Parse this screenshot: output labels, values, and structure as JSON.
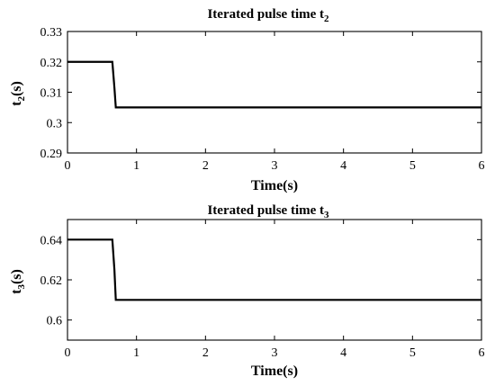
{
  "chart_data": [
    {
      "type": "line",
      "title": "Iterated pulse time t",
      "title_sub": "2",
      "xlabel": "Time(s)",
      "ylabel": "t",
      "ylabel_sub": "2",
      "ylabel_unit": "(s)",
      "xlim": [
        0,
        6
      ],
      "ylim": [
        0.29,
        0.33
      ],
      "xticks": [
        0,
        1,
        2,
        3,
        4,
        5,
        6
      ],
      "xtick_labels": [
        "0",
        "1",
        "2",
        "3",
        "4",
        "5",
        "6"
      ],
      "yticks": [
        0.29,
        0.3,
        0.31,
        0.32,
        0.33
      ],
      "ytick_labels": [
        "0.29",
        "0.3",
        "0.31",
        "0.32",
        "0.33"
      ],
      "grid": false,
      "series": [
        {
          "color": "#000000",
          "x": [
            0,
            0.65,
            0.68,
            0.7,
            6
          ],
          "y": [
            0.32,
            0.32,
            0.3115,
            0.305,
            0.305
          ]
        }
      ]
    },
    {
      "type": "line",
      "title": "Iterated pulse time t",
      "title_sub": "3",
      "xlabel": "Time(s)",
      "ylabel": "t",
      "ylabel_sub": "3",
      "ylabel_unit": "(s)",
      "xlim": [
        0,
        6
      ],
      "ylim": [
        0.59,
        0.65
      ],
      "xticks": [
        0,
        1,
        2,
        3,
        4,
        5,
        6
      ],
      "xtick_labels": [
        "0",
        "1",
        "2",
        "3",
        "4",
        "5",
        "6"
      ],
      "yticks": [
        0.6,
        0.62,
        0.64
      ],
      "ytick_labels": [
        "0.6",
        "0.62",
        "0.64"
      ],
      "grid": false,
      "series": [
        {
          "color": "#000000",
          "x": [
            0,
            0.65,
            0.68,
            0.7,
            6
          ],
          "y": [
            0.64,
            0.64,
            0.625,
            0.61,
            0.61
          ]
        }
      ]
    }
  ]
}
